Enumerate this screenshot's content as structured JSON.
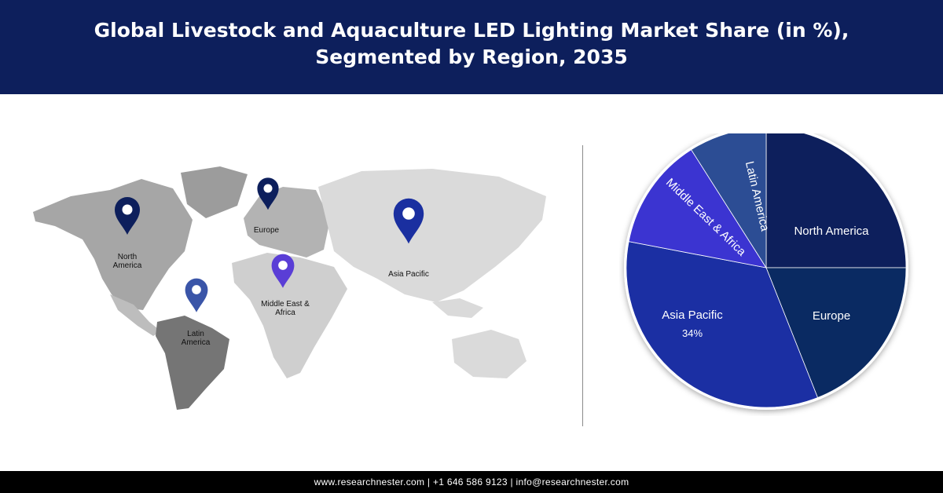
{
  "header": {
    "title_line1": "Global Livestock and Aquaculture LED Lighting Market Share (in %),",
    "title_line2": "Segmented by Region, 2035"
  },
  "map": {
    "pins": [
      {
        "key": "north-america",
        "label_lines": [
          "North",
          "America"
        ],
        "color": "#0d1f5c"
      },
      {
        "key": "europe",
        "label_lines": [
          "Europe"
        ],
        "color": "#0d1f5c"
      },
      {
        "key": "asia-pacific",
        "label_lines": [
          "Asia Pacific"
        ],
        "color": "#1a2fa0"
      },
      {
        "key": "middle-east-africa",
        "label_lines": [
          "Middle East &",
          "Africa"
        ],
        "color": "#5a3ed6"
      },
      {
        "key": "latin-america",
        "label_lines": [
          "Latin",
          "America"
        ],
        "color": "#3a55a8"
      }
    ]
  },
  "chart_data": {
    "type": "pie",
    "title": "Global Livestock and Aquaculture LED Lighting Market Share (in %), Segmented by Region, 2035",
    "slices": [
      {
        "label": "North America",
        "value": 25,
        "color": "#0d1f5c",
        "value_label": ""
      },
      {
        "label": "Europe",
        "value": 19,
        "color": "#0a2a62",
        "value_label": ""
      },
      {
        "label": "Asia Pacific",
        "value": 34,
        "color": "#1b2fa3",
        "value_label": "34%"
      },
      {
        "label": "Middle East & Africa",
        "value": 13,
        "color": "#3b34d1",
        "value_label": ""
      },
      {
        "label": "Latin America",
        "value": 9,
        "color": "#2c4d94",
        "value_label": ""
      }
    ]
  },
  "footer": {
    "text": "www.researchnester.com | +1 646 586 9123 | info@researchnester.com"
  }
}
